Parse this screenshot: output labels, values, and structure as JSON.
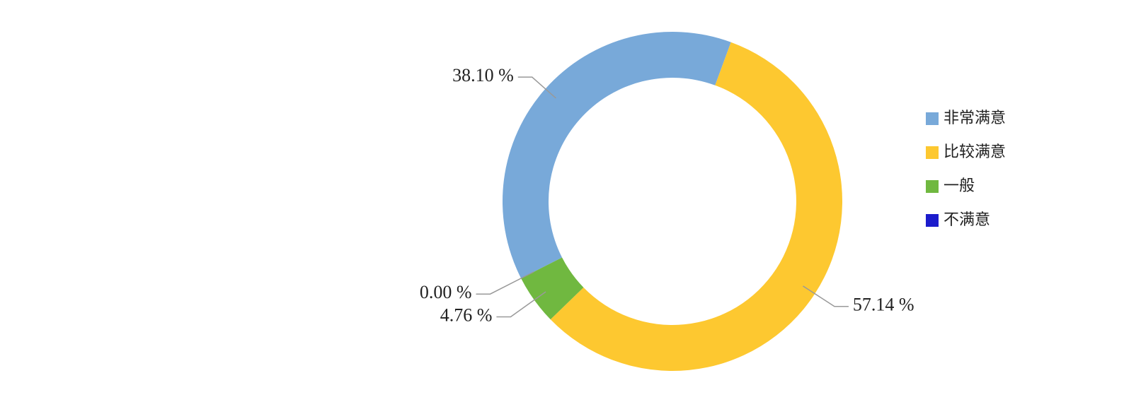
{
  "chart_data": {
    "type": "pie",
    "donut": true,
    "categories": [
      "非常满意",
      "比较满意",
      "一般",
      "不满意"
    ],
    "values": [
      38.1,
      57.14,
      4.76,
      0.0
    ],
    "value_labels": [
      "38.10 %",
      "57.14 %",
      "4.76 %",
      "0.00 %"
    ],
    "colors": [
      "#78a9d9",
      "#fdc830",
      "#70b840",
      "#1c1ccc"
    ],
    "legend": "right"
  }
}
